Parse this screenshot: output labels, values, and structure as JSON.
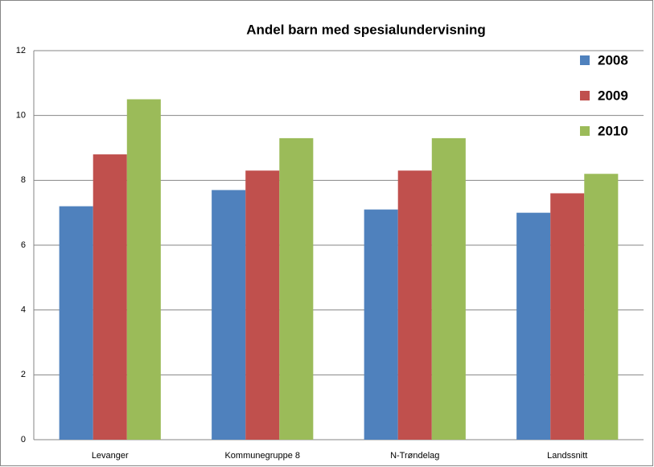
{
  "chart_data": {
    "type": "bar",
    "title": "Andel barn med spesialundervisning",
    "categories": [
      "Levanger",
      "Kommunegruppe 8",
      "N-Trøndelag",
      "Landssnitt"
    ],
    "series": [
      {
        "name": "2008",
        "color": "#4f81bd",
        "values": [
          7.2,
          7.7,
          7.1,
          7.0
        ]
      },
      {
        "name": "2009",
        "color": "#c0504d",
        "values": [
          8.8,
          8.3,
          8.3,
          7.6
        ]
      },
      {
        "name": "2010",
        "color": "#9bbb59",
        "values": [
          10.5,
          9.3,
          9.3,
          8.2
        ]
      }
    ],
    "ylim": [
      0,
      12
    ],
    "yticks": [
      0,
      2,
      4,
      6,
      8,
      10,
      12
    ],
    "grid": true,
    "legend": "top-right"
  }
}
